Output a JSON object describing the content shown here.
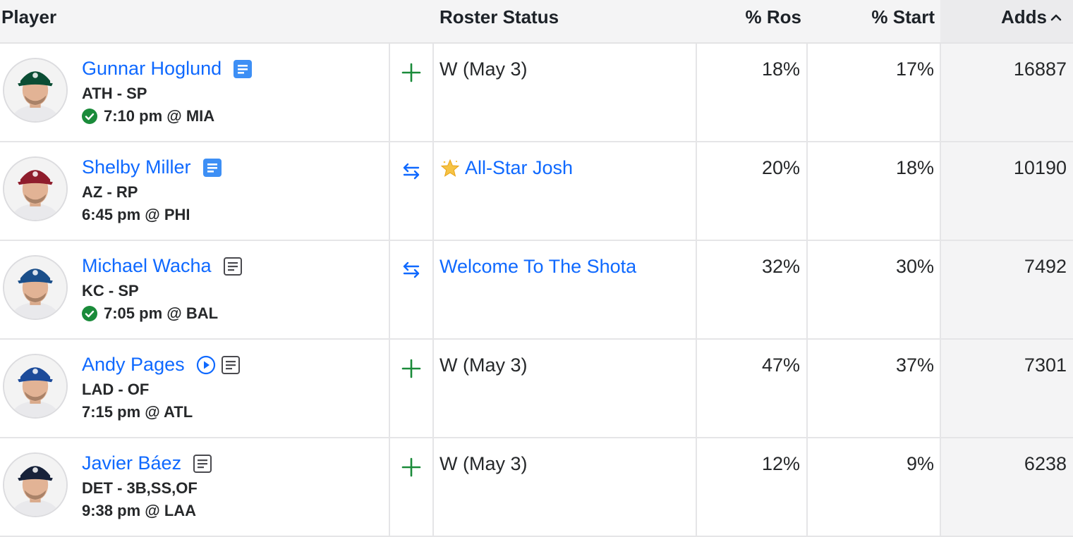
{
  "header": {
    "player": "Player",
    "roster_status": "Roster Status",
    "pct_ros": "% Ros",
    "pct_start": "% Start",
    "adds": "Adds",
    "sort_icon": "chevron-up-icon"
  },
  "colors": {
    "link": "#0f69ff",
    "add_green": "#1a8b3a",
    "check_green": "#1a8b3a",
    "note_blue": "#3d8ff5"
  },
  "players": [
    {
      "name": "Gunnar Hoglund",
      "note_icon": "note-icon-new",
      "team_pos": "ATH - SP",
      "game": "7:10 pm @ MIA",
      "confirmed": true,
      "action_icon": "add-icon",
      "status": "W (May 3)",
      "status_link": false,
      "pct_ros": "18%",
      "pct_start": "17%",
      "adds": "16887",
      "cap": "#0b4d34"
    },
    {
      "name": "Shelby Miller",
      "note_icon": "note-icon-new",
      "team_pos": "AZ - RP",
      "game": "6:45 pm @ PHI",
      "confirmed": false,
      "action_icon": "trade-icon",
      "status": "All-Star Josh",
      "status_link": true,
      "status_icon": "star-icon",
      "pct_ros": "20%",
      "pct_start": "18%",
      "adds": "10190",
      "cap": "#8f1d2c"
    },
    {
      "name": "Michael Wacha",
      "note_icon": "note-icon",
      "team_pos": "KC - SP",
      "game": "7:05 pm @ BAL",
      "confirmed": true,
      "action_icon": "trade-icon",
      "status": "Welcome To The Shota",
      "status_link": true,
      "pct_ros": "32%",
      "pct_start": "30%",
      "adds": "7492",
      "cap": "#1b4f8a"
    },
    {
      "name": "Andy Pages",
      "note_icon": "note-icon",
      "video_icon": "play-icon",
      "team_pos": "LAD - OF",
      "game": "7:15 pm @ ATL",
      "confirmed": false,
      "action_icon": "add-icon",
      "status": "W (May 3)",
      "status_link": false,
      "pct_ros": "47%",
      "pct_start": "37%",
      "adds": "7301",
      "cap": "#1c4b9a"
    },
    {
      "name": "Javier Báez",
      "note_icon": "note-icon",
      "team_pos": "DET - 3B,SS,OF",
      "game": "9:38 pm @ LAA",
      "confirmed": false,
      "action_icon": "add-icon",
      "status": "W (May 3)",
      "status_link": false,
      "pct_ros": "12%",
      "pct_start": "9%",
      "adds": "6238",
      "cap": "#17223a"
    }
  ]
}
